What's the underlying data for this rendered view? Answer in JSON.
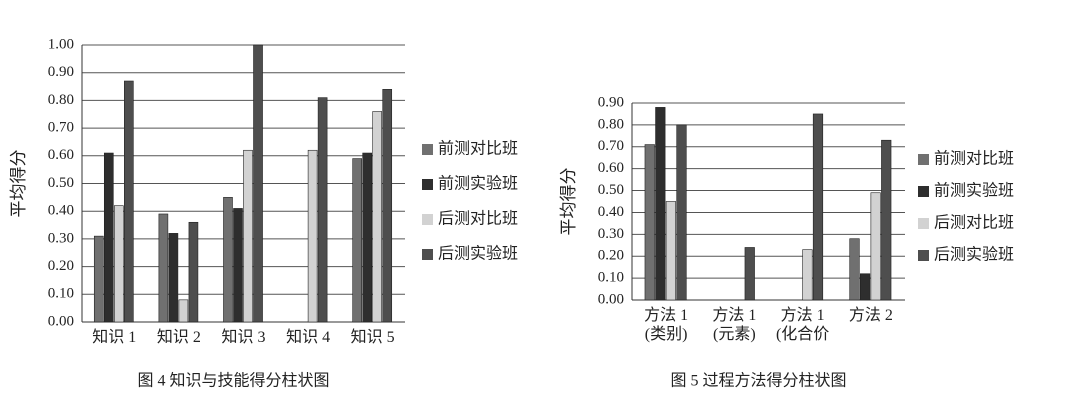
{
  "chart_data": [
    {
      "type": "bar",
      "title": "图 4  知识与技能得分柱状图",
      "y_label": "平均得分",
      "categories": [
        "知识 1",
        "知识 2",
        "知识 3",
        "知识 4",
        "知识 5"
      ],
      "series": [
        {
          "name": "前测对比班",
          "color": "#707070",
          "values": [
            0.31,
            0.39,
            0.45,
            0,
            0.59
          ]
        },
        {
          "name": "前测实验班",
          "color": "#2e2e2e",
          "values": [
            0.61,
            0.32,
            0.41,
            0,
            0.61
          ]
        },
        {
          "name": "后测对比班",
          "color": "#d2d2d2",
          "values": [
            0.42,
            0.08,
            0.62,
            0.62,
            0.76
          ]
        },
        {
          "name": "后测实验班",
          "color": "#4e4e4e",
          "values": [
            0.87,
            0.36,
            1.0,
            0.81,
            0.84
          ]
        }
      ],
      "ylim": [
        0,
        1
      ],
      "yticks": [
        {
          "value": 0,
          "label": "0.00"
        },
        {
          "value": 0.1,
          "label": "0.10"
        },
        {
          "value": 0.2,
          "label": "0.20"
        },
        {
          "value": 0.3,
          "label": "0.30"
        },
        {
          "value": 0.4,
          "label": "0.40"
        },
        {
          "value": 0.5,
          "label": "0.50"
        },
        {
          "value": 0.6,
          "label": "0.60"
        },
        {
          "value": 0.7,
          "label": "0.70"
        },
        {
          "value": 0.8,
          "label": "0.80"
        },
        {
          "value": 0.9,
          "label": "0.90"
        },
        {
          "value": 1,
          "label": "1.00"
        }
      ],
      "grid": true,
      "legend": "right"
    },
    {
      "type": "bar",
      "title": "图 5  过程方法得分柱状图",
      "y_label": "平均得分",
      "categories": [
        "方法 1\n(类别)",
        "方法 1\n(元素)",
        "方法 1\n(化合价",
        "方法 2"
      ],
      "series": [
        {
          "name": "前测对比班",
          "color": "#707070",
          "values": [
            0.71,
            0,
            0,
            0.28
          ]
        },
        {
          "name": "前测实验班",
          "color": "#2e2e2e",
          "values": [
            0.88,
            0,
            0,
            0.12
          ]
        },
        {
          "name": "后测对比班",
          "color": "#d2d2d2",
          "values": [
            0.45,
            0,
            0.23,
            0.49
          ]
        },
        {
          "name": "后测实验班",
          "color": "#4e4e4e",
          "values": [
            0.8,
            0.24,
            0.85,
            0.73
          ]
        }
      ],
      "ylim": [
        0,
        0.9
      ],
      "yticks": [
        {
          "value": 0,
          "label": "0.00"
        },
        {
          "value": 0.1,
          "label": "0.10"
        },
        {
          "value": 0.2,
          "label": "0.20"
        },
        {
          "value": 0.3,
          "label": "0.30"
        },
        {
          "value": 0.4,
          "label": "0.40"
        },
        {
          "value": 0.5,
          "label": "0.50"
        },
        {
          "value": 0.6,
          "label": "0.60"
        },
        {
          "value": 0.7,
          "label": "0.70"
        },
        {
          "value": 0.8,
          "label": "0.80"
        },
        {
          "value": 0.9,
          "label": "0.90"
        }
      ],
      "grid": true,
      "legend": "right"
    }
  ]
}
